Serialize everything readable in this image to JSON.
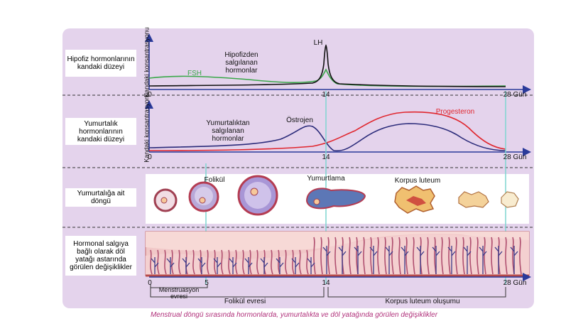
{
  "panel": {
    "background": "#e4d3ec"
  },
  "row_labels": {
    "pituitary": "Hipofiz hormonlarının kandaki düzeyi",
    "ovarian_hormones": "Yumurtalık hormonlarının kandaki düzeyi",
    "ovarian_cycle": "Yumurtalığa ait döngü",
    "uterine": "Hormonal salgıya bağlı olarak döl yatağı astarında görülen değişiklikler"
  },
  "graph1": {
    "ylabel": "Kandaki konsantrasyonu",
    "title": "Hipofizden salgılanan hormonlar",
    "lh_label": "LH",
    "fsh_label": "FSH",
    "x_ticks": [
      "0",
      "14",
      "28 Gün"
    ]
  },
  "graph2": {
    "ylabel": "Kandaki konsantrasyonu",
    "title": "Yumurtalıktan salgılanan hormonlar",
    "estrogen_label": "Östrojen",
    "progesterone_label": "Progesteron",
    "x_ticks": [
      "0",
      "14",
      "28 Gün"
    ]
  },
  "ovary": {
    "follicle_label": "Folikül",
    "ovulation_label": "Yumurtlama",
    "corpus_label": "Korpus luteum"
  },
  "timeline": {
    "ticks": [
      "0",
      "5",
      "14",
      "28 Gün"
    ],
    "menstruation": "Menstruasyon evresi",
    "follicle_phase": "Folikül evresi",
    "luteal_phase": "Korpus luteum oluşumu"
  },
  "caption": "Menstrual döngü sırasında hormonlarda, yumurtalıkta ve döl yatağında görülen değişiklikler",
  "colors": {
    "lh": "#111111",
    "fsh": "#3aa84a",
    "estrogen": "#2b2b7a",
    "progesterone": "#e0262e",
    "caption": "#b0307a",
    "axis": "#2a3a9a",
    "guide": "#7fd6d0"
  }
}
